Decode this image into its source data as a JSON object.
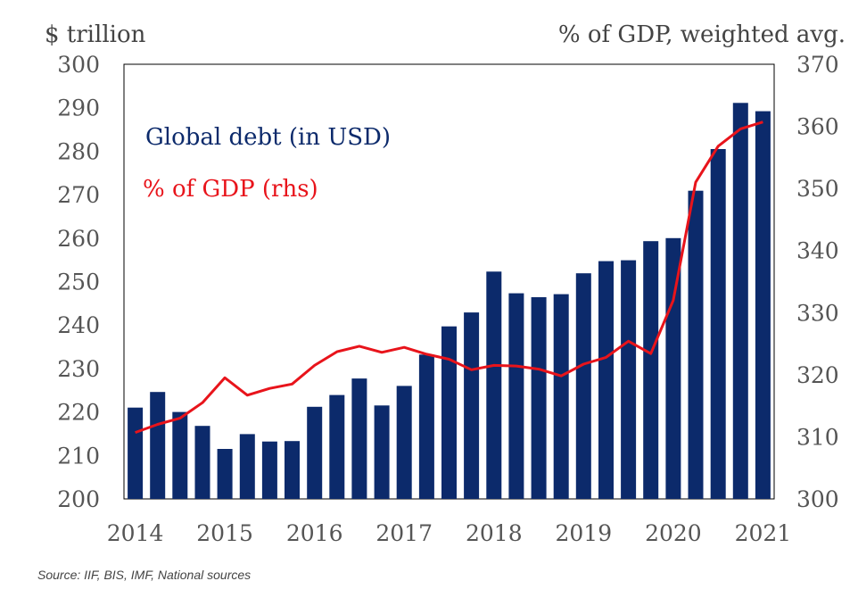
{
  "chart_data": {
    "type": "bar",
    "left_axis_title": "$ trillion",
    "right_axis_title": "% of GDP, weighted avg.",
    "ylim_left": [
      200,
      300
    ],
    "yticks_left": [
      300,
      290,
      280,
      270,
      260,
      250,
      240,
      230,
      220,
      210,
      200
    ],
    "ylim_right": [
      300,
      370
    ],
    "yticks_right": [
      370,
      360,
      350,
      340,
      330,
      320,
      310,
      300
    ],
    "x_tick_labels": [
      "2014",
      "2015",
      "2016",
      "2017",
      "2018",
      "2019",
      "2020",
      "2021"
    ],
    "quarters": [
      "2014 Q1",
      "2014 Q2",
      "2014 Q3",
      "2014 Q4",
      "2015 Q1",
      "2015 Q2",
      "2015 Q3",
      "2015 Q4",
      "2016 Q1",
      "2016 Q2",
      "2016 Q3",
      "2016 Q4",
      "2017 Q1",
      "2017 Q2",
      "2017 Q3",
      "2017 Q4",
      "2018 Q1",
      "2018 Q2",
      "2018 Q3",
      "2018 Q4",
      "2019 Q1",
      "2019 Q2",
      "2019 Q3",
      "2019 Q4",
      "2020 Q1",
      "2020 Q2",
      "2020 Q3",
      "2020 Q4",
      "2021 Q1"
    ],
    "grid": false,
    "series": [
      {
        "name": "Global debt (in USD)",
        "type": "bar",
        "axis": "left",
        "color": "#0c2a6b",
        "values": [
          221,
          224.6,
          220,
          216.8,
          211.5,
          214.9,
          213.2,
          213.3,
          221.2,
          223.9,
          227.7,
          221.5,
          226,
          233.2,
          239.7,
          242.9,
          252.3,
          247.3,
          246.4,
          247.1,
          251.9,
          254.7,
          254.9,
          259.3,
          260,
          270.9,
          280.5,
          291.1,
          289.2
        ]
      },
      {
        "name": "% of GDP (rhs)",
        "type": "line",
        "axis": "right",
        "color": "#e8141b",
        "values": [
          310.7,
          312,
          313,
          315.5,
          319.5,
          316.7,
          317.8,
          318.5,
          321.5,
          323.7,
          324.6,
          323.6,
          324.4,
          323.3,
          322.5,
          320.8,
          321.5,
          321.4,
          320.9,
          319.8,
          321.7,
          322.8,
          325.4,
          323.4,
          332,
          351,
          356.8,
          359.6,
          360.7
        ]
      }
    ]
  },
  "source_note": "Source: IIF, BIS, IMF, National sources"
}
